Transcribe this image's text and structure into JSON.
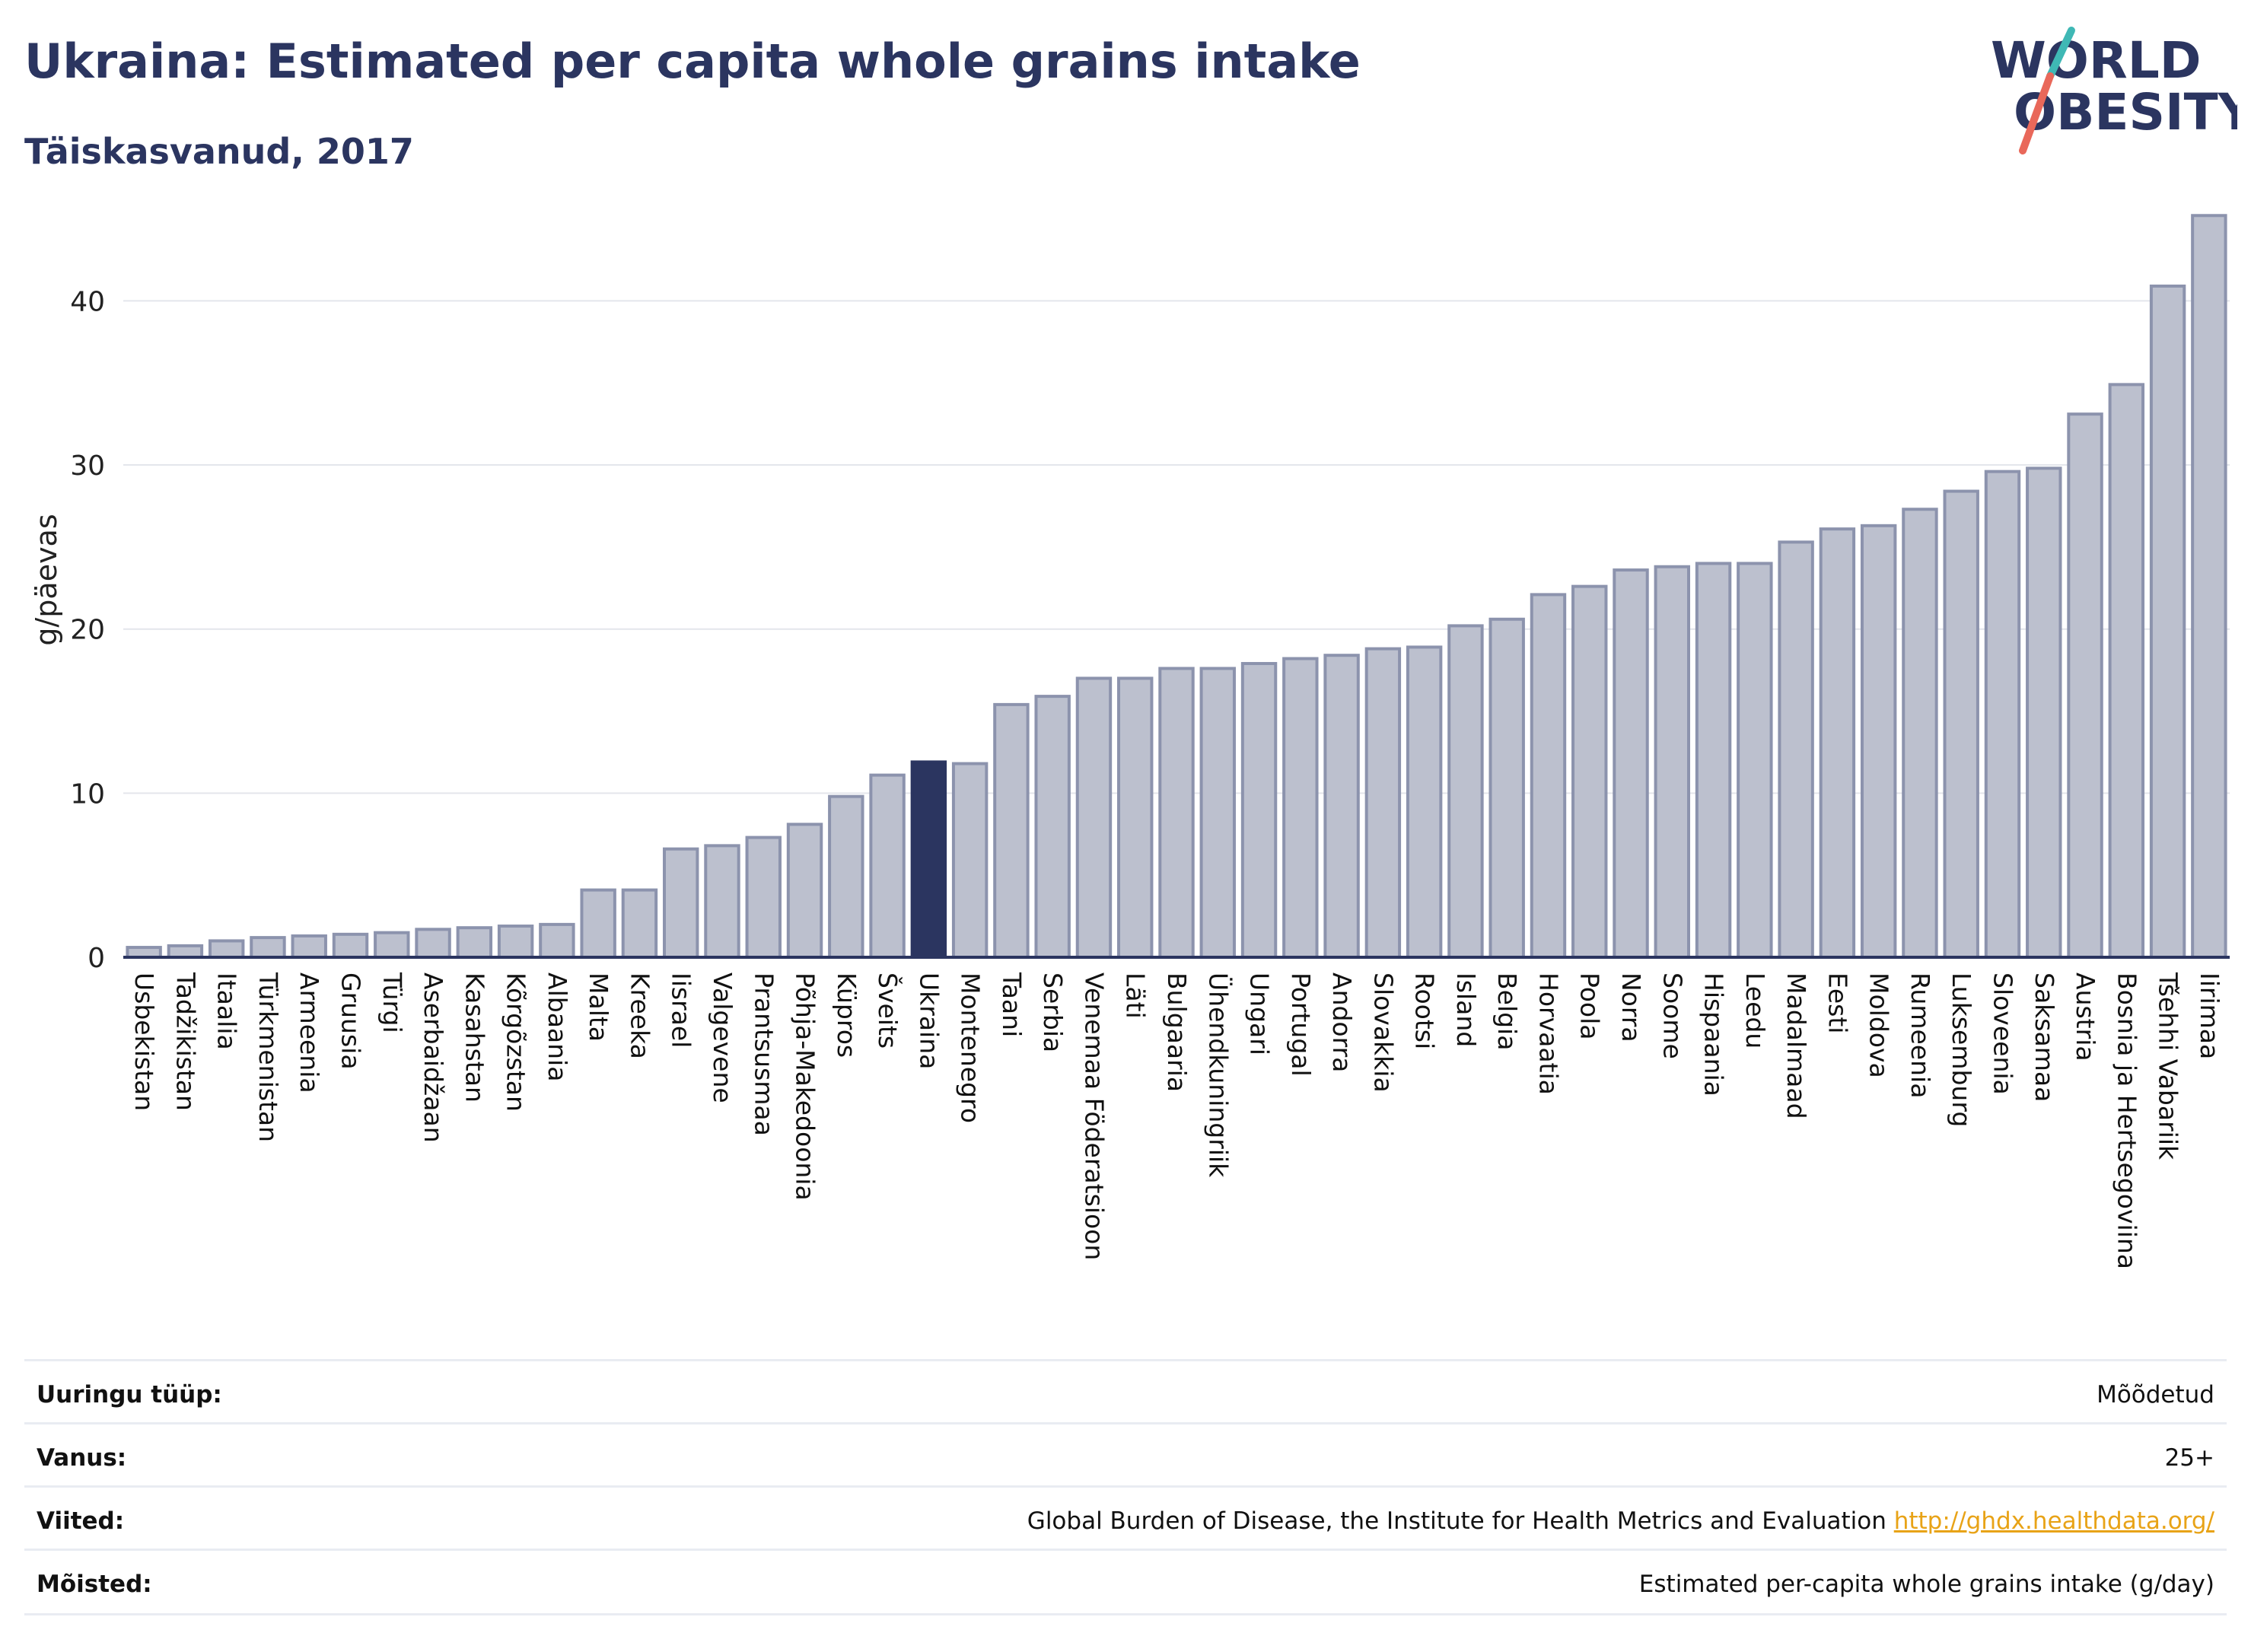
{
  "header": {
    "title": "Ukraina: Estimated per capita whole grains intake",
    "subtitle": "Täiskasvanud, 2017",
    "logo_line1": "WORLD",
    "logo_line2": "OBESITY"
  },
  "chart_data": {
    "type": "bar",
    "ylabel": "g/päevas",
    "ylim": [
      0,
      46
    ],
    "yticks": [
      0,
      10,
      20,
      30,
      40
    ],
    "grid": true,
    "highlight": "Ukraina",
    "colors": {
      "bar": "#bcc0ce",
      "bar_border": "#8c93ad",
      "highlight": "#2b3560",
      "grid": "#e4e6ec",
      "axis": "#2b3560"
    },
    "categories": [
      "Usbekistan",
      "Tadžikistan",
      "Itaalia",
      "Türkmenistan",
      "Armeenia",
      "Gruusia",
      "Türgi",
      "Aserbaidžaan",
      "Kasahstan",
      "Kõrgõzstan",
      "Albaania",
      "Malta",
      "Kreeka",
      "Iisrael",
      "Valgevene",
      "Prantsusmaa",
      "Põhja-Makedoonia",
      "Küpros",
      "Šveits",
      "Ukraina",
      "Montenegro",
      "Taani",
      "Serbia",
      "Venemaa Föderatsioon",
      "Läti",
      "Bulgaaria",
      "Ühendkuningriik",
      "Ungari",
      "Portugal",
      "Andorra",
      "Slovakkia",
      "Rootsi",
      "Island",
      "Belgia",
      "Horvaatia",
      "Poola",
      "Norra",
      "Soome",
      "Hispaania",
      "Leedu",
      "Madalmaad",
      "Eesti",
      "Moldova",
      "Rumeenia",
      "Luksemburg",
      "Sloveenia",
      "Saksamaa",
      "Austria",
      "Bosnia ja Hertsegoviina",
      "Tšehhi Vabariik",
      "Iirimaa"
    ],
    "values": [
      0.6,
      0.7,
      1.0,
      1.2,
      1.3,
      1.4,
      1.5,
      1.7,
      1.8,
      1.9,
      2.0,
      4.1,
      4.1,
      6.6,
      6.8,
      7.3,
      8.1,
      9.8,
      11.1,
      11.9,
      11.8,
      15.4,
      15.9,
      17.0,
      17.0,
      17.6,
      17.6,
      17.9,
      18.2,
      18.4,
      18.8,
      18.9,
      20.2,
      20.6,
      22.1,
      22.6,
      23.6,
      23.8,
      24.0,
      24.0,
      25.3,
      26.1,
      26.3,
      27.3,
      28.4,
      29.6,
      29.8,
      33.1,
      34.9,
      40.9,
      45.2
    ]
  },
  "info": [
    {
      "key": "Uuringu tüüp:",
      "value": "Mõõdetud"
    },
    {
      "key": "Vanus:",
      "value": "25+"
    },
    {
      "key": "Viited:",
      "value": "Global Burden of Disease, the Institute for Health Metrics and Evaluation",
      "link": "http://ghdx.healthdata.org/"
    },
    {
      "key": "Mõisted:",
      "value": "Estimated per-capita whole grains intake (g/day)"
    }
  ]
}
